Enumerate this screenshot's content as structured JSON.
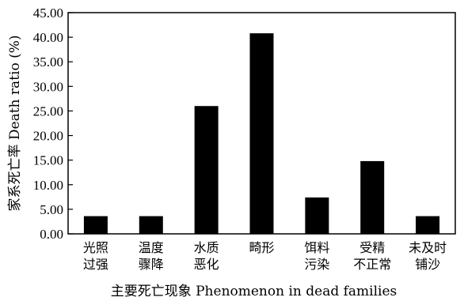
{
  "chart_data": {
    "type": "bar",
    "categories": [
      [
        "光照",
        "过强"
      ],
      [
        "温度",
        "骤降"
      ],
      [
        "水质",
        "恶化"
      ],
      [
        "畸形"
      ],
      [
        "饵料",
        "污染"
      ],
      [
        "受精",
        "不正常"
      ],
      [
        "未及时",
        "铺沙"
      ]
    ],
    "values": [
      3.6,
      3.6,
      26.0,
      40.8,
      7.4,
      14.8,
      3.6
    ],
    "ylim": [
      0,
      45
    ],
    "yticks": [
      "0.00",
      "5.00",
      "10.00",
      "15.00",
      "20.00",
      "25.00",
      "30.00",
      "35.00",
      "40.00",
      "45.00"
    ],
    "ylabel": "家系死亡率  Death ratio (%)",
    "xlabel": "主要死亡现象  Phenomenon in dead families",
    "bar_color": "#000000",
    "grid": false
  }
}
